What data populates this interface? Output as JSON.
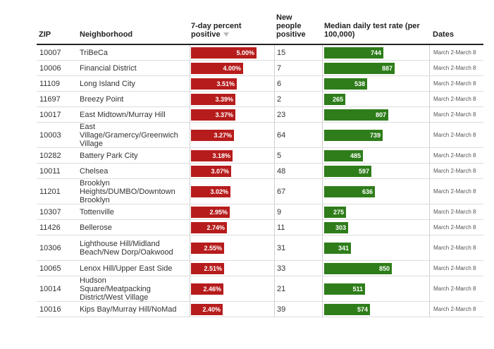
{
  "headers": {
    "zip": "ZIP",
    "neighborhood": "Neighborhood",
    "pct_line1": "7-day percent",
    "pct_line2": "positive",
    "new_line1": "New",
    "new_line2": "people",
    "new_line3": "positive",
    "rate_line1": "Median daily test rate (per",
    "rate_line2": "100,000)",
    "dates": "Dates"
  },
  "colors": {
    "positive_bar": "#b71c1c",
    "rate_bar": "#2e7d1a"
  },
  "rows": [
    {
      "zip": "10007",
      "nb": [
        "TriBeCa"
      ],
      "pct": "5.00%",
      "pct_val": 5.0,
      "new": "15",
      "rate": "744",
      "rate_val": 744,
      "dates": "March 2-March 8"
    },
    {
      "zip": "10006",
      "nb": [
        "Financial District"
      ],
      "pct": "4.00%",
      "pct_val": 4.0,
      "new": "7",
      "rate": "887",
      "rate_val": 887,
      "dates": "March 2-March 8"
    },
    {
      "zip": "11109",
      "nb": [
        "Long Island City"
      ],
      "pct": "3.51%",
      "pct_val": 3.51,
      "new": "6",
      "rate": "538",
      "rate_val": 538,
      "dates": "March 2-March 8"
    },
    {
      "zip": "11697",
      "nb": [
        "Breezy Point"
      ],
      "pct": "3.39%",
      "pct_val": 3.39,
      "new": "2",
      "rate": "265",
      "rate_val": 265,
      "dates": "March 2-March 8"
    },
    {
      "zip": "10017",
      "nb": [
        "East Midtown/Murray Hill"
      ],
      "pct": "3.37%",
      "pct_val": 3.37,
      "new": "23",
      "rate": "807",
      "rate_val": 807,
      "dates": "March 2-March 8"
    },
    {
      "zip": "10003",
      "nb": [
        "East",
        "Village/Gramercy/Greenwich",
        "Village"
      ],
      "pct": "3.27%",
      "pct_val": 3.27,
      "new": "64",
      "rate": "739",
      "rate_val": 739,
      "dates": "March 2-March 8"
    },
    {
      "zip": "10282",
      "nb": [
        "Battery Park City"
      ],
      "pct": "3.18%",
      "pct_val": 3.18,
      "new": "5",
      "rate": "485",
      "rate_val": 485,
      "dates": "March 2-March 8"
    },
    {
      "zip": "10011",
      "nb": [
        "Chelsea"
      ],
      "pct": "3.07%",
      "pct_val": 3.07,
      "new": "48",
      "rate": "597",
      "rate_val": 597,
      "dates": "March 2-March 8"
    },
    {
      "zip": "11201",
      "nb": [
        "Brooklyn",
        "Heights/DUMBO/Downtown",
        "Brooklyn"
      ],
      "pct": "3.02%",
      "pct_val": 3.02,
      "new": "67",
      "rate": "636",
      "rate_val": 636,
      "dates": "March 2-March 8"
    },
    {
      "zip": "10307",
      "nb": [
        "Tottenville"
      ],
      "pct": "2.95%",
      "pct_val": 2.95,
      "new": "9",
      "rate": "275",
      "rate_val": 275,
      "dates": "March 2-March 8"
    },
    {
      "zip": "11426",
      "nb": [
        "Bellerose"
      ],
      "pct": "2.74%",
      "pct_val": 2.74,
      "new": "11",
      "rate": "303",
      "rate_val": 303,
      "dates": "March 2-March 8"
    },
    {
      "zip": "10306",
      "nb": [
        "Lighthouse Hill/Midland",
        "Beach/New Dorp/Oakwood"
      ],
      "pct": "2.55%",
      "pct_val": 2.55,
      "new": "31",
      "rate": "341",
      "rate_val": 341,
      "dates": "March 2-March 8"
    },
    {
      "zip": "10065",
      "nb": [
        "Lenox Hill/Upper East Side"
      ],
      "pct": "2.51%",
      "pct_val": 2.51,
      "new": "33",
      "rate": "850",
      "rate_val": 850,
      "dates": "March 2-March 8"
    },
    {
      "zip": "10014",
      "nb": [
        "Hudson",
        "Square/Meatpacking",
        "District/West Village"
      ],
      "pct": "2.46%",
      "pct_val": 2.46,
      "new": "21",
      "rate": "511",
      "rate_val": 511,
      "dates": "March 2-March 8"
    },
    {
      "zip": "10016",
      "nb": [
        "Kips Bay/Murray Hill/NoMad"
      ],
      "pct": "2.40%",
      "pct_val": 2.4,
      "new": "39",
      "rate": "574",
      "rate_val": 574,
      "dates": "March 2-March 8"
    }
  ]
}
